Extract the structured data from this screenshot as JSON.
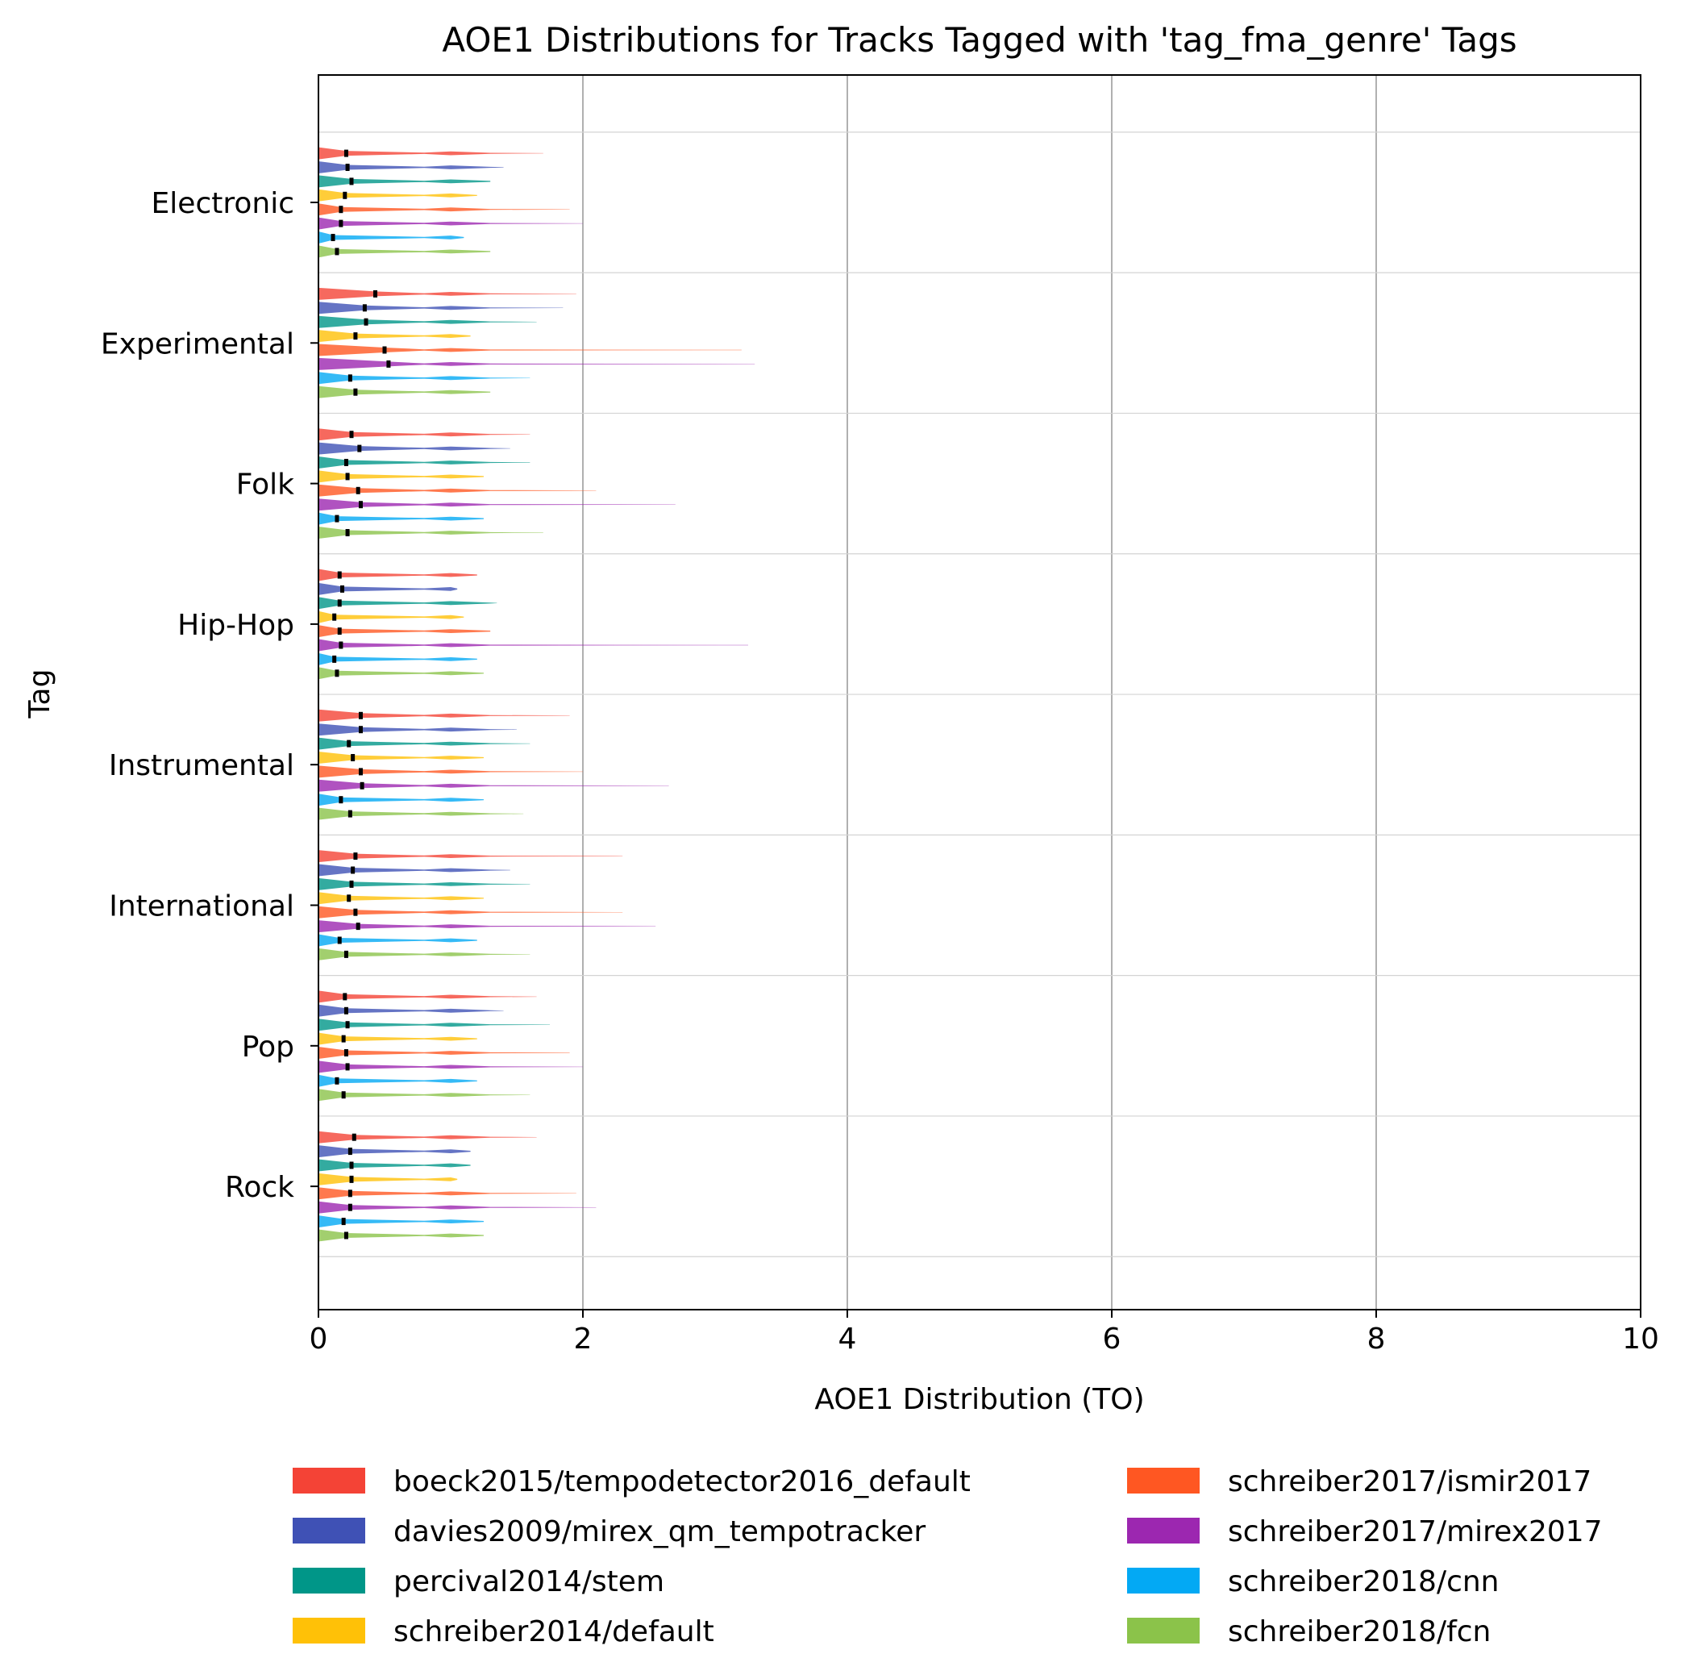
{
  "chart_data": {
    "type": "violin",
    "orientation": "horizontal",
    "title": "AOE1 Distributions for Tracks Tagged with 'tag_fma_genre' Tags",
    "xlabel": "AOE1 Distribution (TO)",
    "ylabel": "Tag",
    "xlim": [
      0,
      10
    ],
    "xticks": [
      "0",
      "2",
      "4",
      "6",
      "8",
      "10"
    ],
    "grid": "x-major",
    "legend_placement": "bottom-center",
    "categories": [
      "Electronic",
      "Experimental",
      "Folk",
      "Hip-Hop",
      "Instrumental",
      "International",
      "Pop",
      "Rock"
    ],
    "series": [
      {
        "name": "boeck2015/tempodetector2016_default",
        "color": "#f44336",
        "medians": [
          0.21,
          0.43,
          0.25,
          0.16,
          0.32,
          0.28,
          0.2,
          0.27
        ],
        "max": [
          1.7,
          1.95,
          1.6,
          1.2,
          1.9,
          2.3,
          1.65,
          1.65
        ]
      },
      {
        "name": "davies2009/mirex_qm_tempotracker",
        "color": "#3f51b5",
        "medians": [
          0.22,
          0.35,
          0.31,
          0.18,
          0.32,
          0.26,
          0.21,
          0.24
        ],
        "max": [
          1.4,
          1.85,
          1.45,
          1.05,
          1.5,
          1.45,
          1.4,
          1.15
        ]
      },
      {
        "name": "percival2014/stem",
        "color": "#009688",
        "medians": [
          0.25,
          0.36,
          0.21,
          0.16,
          0.23,
          0.25,
          0.22,
          0.25
        ],
        "max": [
          1.3,
          1.65,
          1.6,
          1.35,
          1.6,
          1.6,
          1.75,
          1.15
        ]
      },
      {
        "name": "schreiber2014/default",
        "color": "#ffc107",
        "medians": [
          0.2,
          0.28,
          0.22,
          0.12,
          0.26,
          0.23,
          0.19,
          0.25
        ],
        "max": [
          1.2,
          1.15,
          1.25,
          1.1,
          1.25,
          1.25,
          1.2,
          1.05
        ]
      },
      {
        "name": "schreiber2017/ismir2017",
        "color": "#ff5722",
        "medians": [
          0.17,
          0.5,
          0.3,
          0.16,
          0.32,
          0.28,
          0.21,
          0.24
        ],
        "max": [
          1.9,
          3.2,
          2.1,
          1.3,
          2.0,
          2.3,
          1.9,
          1.95
        ]
      },
      {
        "name": "schreiber2017/mirex2017",
        "color": "#9c27b0",
        "medians": [
          0.17,
          0.53,
          0.32,
          0.17,
          0.33,
          0.3,
          0.22,
          0.24
        ],
        "max": [
          2.0,
          3.3,
          2.7,
          3.25,
          2.65,
          2.55,
          2.0,
          2.1
        ]
      },
      {
        "name": "schreiber2018/cnn",
        "color": "#03a9f4",
        "medians": [
          0.11,
          0.24,
          0.14,
          0.12,
          0.17,
          0.16,
          0.14,
          0.19
        ],
        "max": [
          1.1,
          1.6,
          1.25,
          1.2,
          1.25,
          1.2,
          1.2,
          1.25
        ]
      },
      {
        "name": "schreiber2018/fcn",
        "color": "#8bc34a",
        "medians": [
          0.14,
          0.28,
          0.22,
          0.14,
          0.24,
          0.21,
          0.19,
          0.21
        ],
        "max": [
          1.3,
          1.3,
          1.7,
          1.25,
          1.55,
          1.6,
          1.6,
          1.25
        ]
      }
    ]
  }
}
